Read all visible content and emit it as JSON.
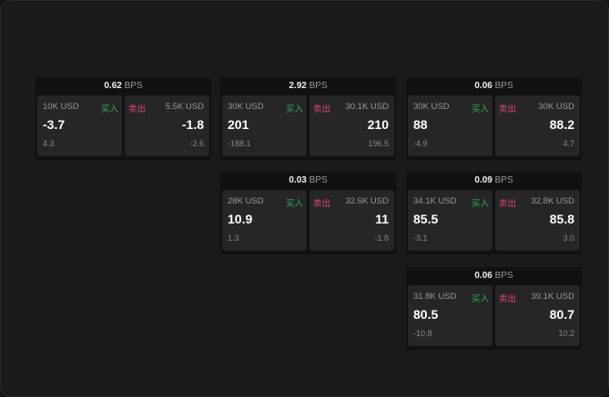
{
  "unit": "BPS",
  "buy_label": "买入",
  "sell_label": "卖出",
  "colors": {
    "buy": "#2fae5b",
    "sell": "#e0457a"
  },
  "cards": [
    {
      "spread": "0.62",
      "buy": {
        "qty": "10K USD",
        "price": "-3.7",
        "change": "4.3"
      },
      "sell": {
        "qty": "5.5K USD",
        "price": "-1.8",
        "change": "-2.6"
      }
    },
    {
      "spread": "2.92",
      "buy": {
        "qty": "30K USD",
        "price": "201",
        "change": "-188.1"
      },
      "sell": {
        "qty": "30.1K USD",
        "price": "210",
        "change": "196.5"
      }
    },
    {
      "spread": "0.06",
      "buy": {
        "qty": "30K USD",
        "price": "88",
        "change": "-4.9"
      },
      "sell": {
        "qty": "30K USD",
        "price": "88.2",
        "change": "4.7"
      }
    },
    {
      "spread": "0.03",
      "buy": {
        "qty": "28K USD",
        "price": "10.9",
        "change": "1.3"
      },
      "sell": {
        "qty": "32.6K USD",
        "price": "11",
        "change": "-1.8"
      }
    },
    {
      "spread": "0.09",
      "buy": {
        "qty": "34.1K USD",
        "price": "85.5",
        "change": "-3.1"
      },
      "sell": {
        "qty": "32.8K USD",
        "price": "85.8",
        "change": "3.0"
      }
    },
    {
      "spread": "0.06",
      "buy": {
        "qty": "31.8K USD",
        "price": "80.5",
        "change": "-10.8"
      },
      "sell": {
        "qty": "39.1K USD",
        "price": "80.7",
        "change": "10.2"
      }
    }
  ]
}
